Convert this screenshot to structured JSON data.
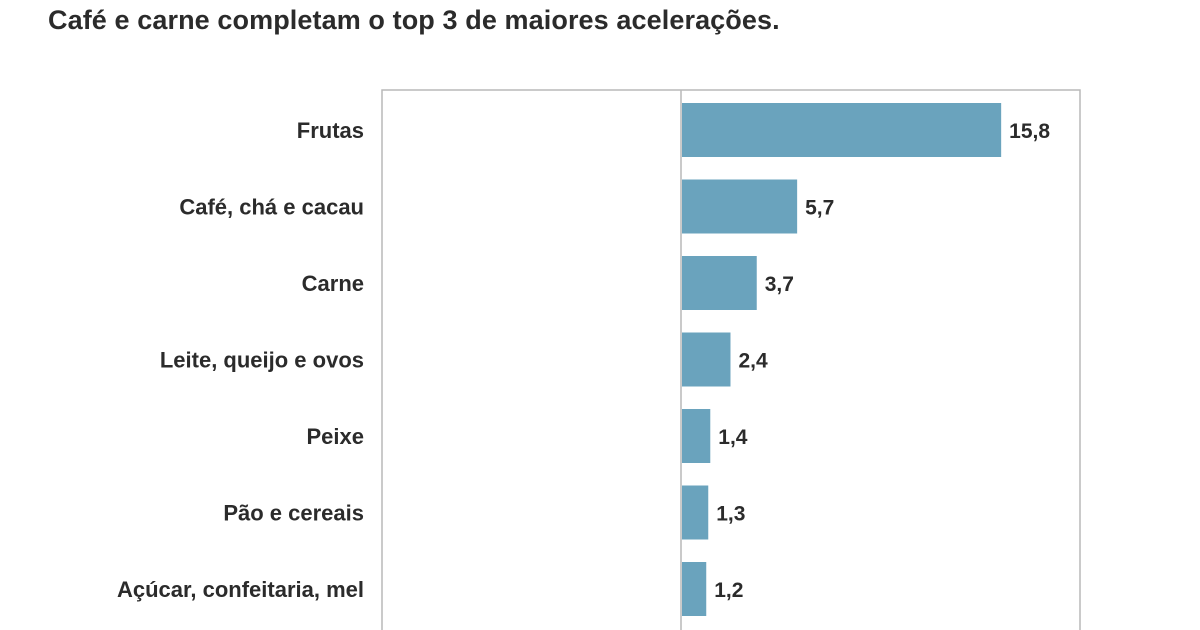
{
  "chart_data": {
    "type": "bar",
    "orientation": "horizontal",
    "title": "Café e carne completam o top 3 de maiores acelerações.",
    "categories": [
      "Frutas",
      "Café, chá e cacau",
      "Carne",
      "Leite, queijo e ovos",
      "Peixe",
      "Pão e cereais",
      "Açúcar, confeitaria, mel"
    ],
    "values": [
      15.8,
      5.7,
      3.7,
      2.4,
      1.4,
      1.3,
      1.2
    ],
    "value_labels": [
      "15,8",
      "5,7",
      "3,7",
      "2,4",
      "1,4",
      "1,3",
      "1,2"
    ],
    "bar_color": "#6aa3bd",
    "xlim": [
      -15,
      20
    ],
    "grid": false,
    "legend": "none"
  }
}
